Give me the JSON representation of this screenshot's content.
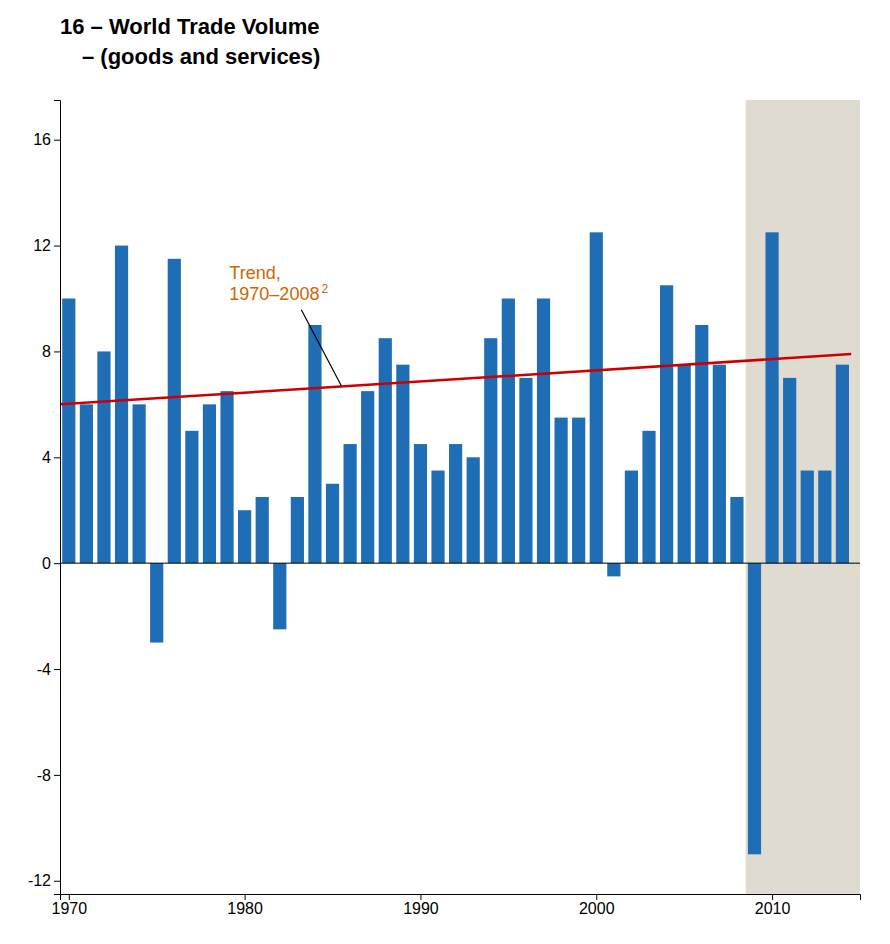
{
  "chart_data": {
    "type": "bar",
    "title": "16 – World Trade Volume",
    "subtitle": "– (goods and services)",
    "series": [
      {
        "type": "bar",
        "color": "#1f6db5",
        "x": [
          1970,
          1971,
          1972,
          1973,
          1974,
          1975,
          1976,
          1977,
          1978,
          1979,
          1980,
          1981,
          1982,
          1983,
          1984,
          1985,
          1986,
          1987,
          1988,
          1989,
          1990,
          1991,
          1992,
          1993,
          1994,
          1995,
          1996,
          1997,
          1998,
          1999,
          2000,
          2001,
          2002,
          2003,
          2004,
          2005,
          2006,
          2007,
          2008,
          2009,
          2010,
          2011,
          2012,
          2013,
          2014
        ],
        "values": [
          10.0,
          6.0,
          8.0,
          12.0,
          6.0,
          -3.0,
          11.5,
          5.0,
          6.0,
          6.5,
          2.0,
          2.5,
          -2.5,
          2.5,
          9.0,
          3.0,
          4.5,
          6.5,
          8.5,
          7.5,
          4.5,
          3.5,
          4.5,
          4.0,
          8.5,
          10.0,
          7.0,
          10.0,
          5.5,
          5.5,
          12.5,
          -0.5,
          3.5,
          5.0,
          10.5,
          7.5,
          9.0,
          7.5,
          2.5,
          -11.0,
          12.5,
          7.0,
          3.5,
          3.5,
          7.5
        ]
      },
      {
        "type": "line",
        "color": "#cc0000",
        "x": [
          1969.5,
          2014.5
        ],
        "values": [
          6.0,
          7.9
        ]
      }
    ],
    "shaded_region": {
      "x": [
        2008.5,
        2015.0
      ],
      "color": "#e0dbd0"
    },
    "annotations": [
      {
        "text": "Trend,\n1970–2008",
        "superscript": "2",
        "x": 1985.5,
        "y": 6.7,
        "color": "#cc6600"
      }
    ],
    "xlim": [
      1969.5,
      2015.0
    ],
    "xticks": [
      1970,
      1980,
      1990,
      2000,
      2010
    ],
    "ylim": [
      -12.5,
      17.5
    ],
    "yticks": [
      -12,
      -8,
      -4,
      0,
      4,
      8,
      12,
      16
    ],
    "grid": false
  }
}
